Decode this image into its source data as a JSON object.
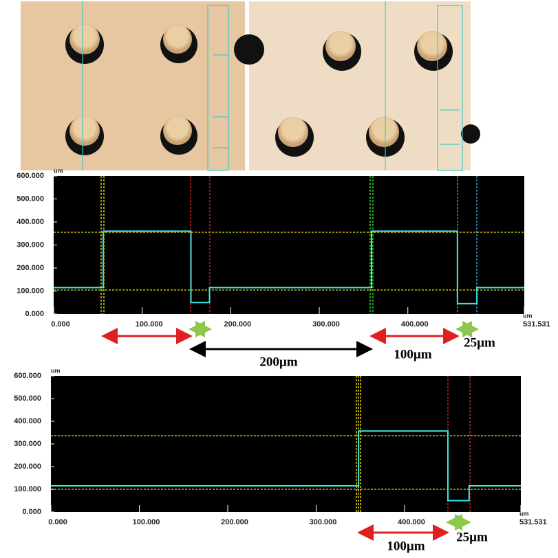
{
  "chart_data": [
    {
      "type": "line",
      "y_label": "um",
      "x_label": "um",
      "x": [
        0,
        56,
        56,
        155,
        155,
        176,
        176,
        359,
        359,
        456,
        456,
        478,
        478,
        531.531
      ],
      "values": [
        115,
        115,
        360,
        360,
        50,
        50,
        115,
        115,
        360,
        360,
        45,
        45,
        115,
        115
      ],
      "color": "#3ee6e6",
      "xlim": [
        0,
        531.531
      ],
      "xticks": [
        {
          "value": 0,
          "label": "0.000"
        },
        {
          "value": 100,
          "label": "100.000"
        },
        {
          "value": 200,
          "label": "200.000"
        },
        {
          "value": 300,
          "label": "300.000"
        },
        {
          "value": 400,
          "label": "400.000"
        },
        531.531
      ],
      "ylim": [
        0,
        600
      ],
      "yticks": [
        {
          "value": 0,
          "label": "0.000"
        },
        {
          "value": 100,
          "label": "100.000"
        },
        {
          "value": 200,
          "label": "200.000"
        },
        {
          "value": 300,
          "label": "300.000"
        },
        {
          "value": 400,
          "label": "400.000"
        },
        {
          "value": 500,
          "label": "500.000"
        },
        {
          "value": 600,
          "label": "600.000"
        }
      ],
      "annotations": [
        "200µm",
        "100µm",
        "25µm"
      ]
    },
    {
      "type": "line",
      "y_label": "um",
      "x_label": "um",
      "x": [
        0,
        348,
        348,
        449,
        449,
        473,
        473,
        531.531
      ],
      "values": [
        115,
        115,
        357,
        357,
        50,
        50,
        115,
        115
      ],
      "color": "#3ee6e6",
      "xlim": [
        0,
        531.531
      ],
      "xticks": [
        {
          "value": 0,
          "label": "0.000"
        },
        {
          "value": 100,
          "label": "100.000"
        },
        {
          "value": 200,
          "label": "200.000"
        },
        {
          "value": 300,
          "label": "300.000"
        },
        {
          "value": 400,
          "label": "400.000"
        },
        531.531
      ],
      "ylim": [
        0,
        600
      ],
      "yticks": [
        {
          "value": 0,
          "label": "0.000"
        },
        {
          "value": 100,
          "label": "100.000"
        },
        {
          "value": 200,
          "label": "200.000"
        },
        {
          "value": 300,
          "label": "300.000"
        },
        {
          "value": 400,
          "label": "400.000"
        },
        {
          "value": 500,
          "label": "500.000"
        },
        {
          "value": 600,
          "label": "600.000"
        }
      ],
      "annotations": [
        "100µm",
        "25µm"
      ]
    }
  ]
}
